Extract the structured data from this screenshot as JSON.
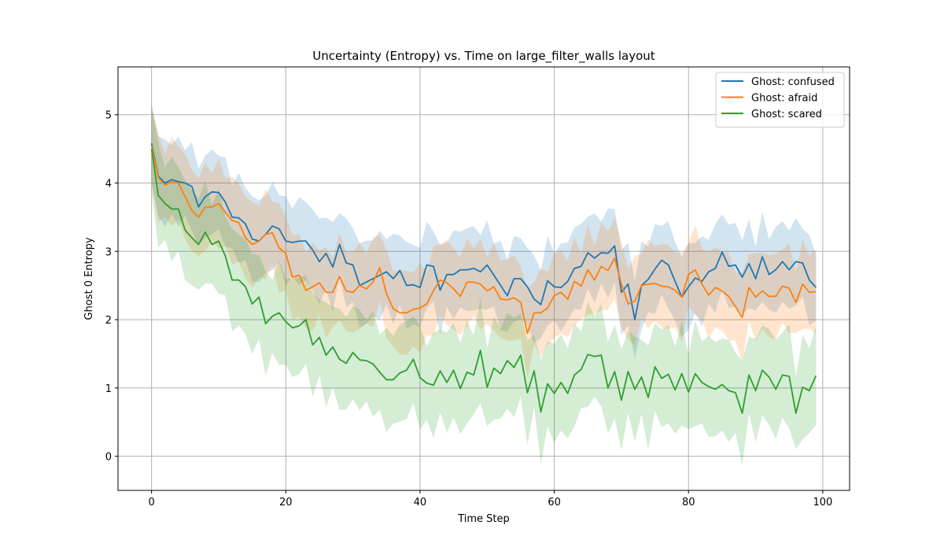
{
  "chart_data": {
    "type": "line",
    "title": "Uncertainty (Entropy) vs. Time on large_filter_walls layout",
    "xlabel": "Time Step",
    "ylabel": "Ghost 0 Entropy",
    "xlim": [
      -5,
      104
    ],
    "ylim": [
      -0.5,
      5.7
    ],
    "xticks": [
      0,
      20,
      40,
      60,
      80,
      100
    ],
    "yticks": [
      0,
      1,
      2,
      3,
      4,
      5
    ],
    "grid": true,
    "legend_position": "top-right",
    "band": "shaded region around each mean line (± spread)",
    "series": [
      {
        "name": "Ghost: confused",
        "color": "#1f77b4",
        "band_halfwidth": 0.6,
        "mean": [
          4.58,
          4.1,
          4.0,
          4.05,
          4.02,
          4.0,
          3.95,
          3.65,
          3.8,
          3.87,
          3.86,
          3.72,
          3.5,
          3.49,
          3.4,
          3.18,
          3.15,
          3.25,
          3.37,
          3.33,
          3.15,
          3.13,
          3.15,
          3.15,
          3.02,
          2.85,
          2.97,
          2.77,
          3.1,
          2.83,
          2.8,
          2.5,
          2.55,
          2.6,
          2.65,
          2.7,
          2.6,
          2.72,
          2.5,
          2.51,
          2.47,
          2.8,
          2.78,
          2.43,
          2.66,
          2.66,
          2.73,
          2.73,
          2.75,
          2.7,
          2.8,
          2.65,
          2.5,
          2.35,
          2.6,
          2.6,
          2.48,
          2.3,
          2.22,
          2.57,
          2.48,
          2.47,
          2.56,
          2.75,
          2.78,
          2.98,
          2.9,
          2.98,
          2.97,
          3.08,
          2.4,
          2.52,
          2.0,
          2.5,
          2.59,
          2.74,
          2.87,
          2.8,
          2.56,
          2.33,
          2.48,
          2.61,
          2.56,
          2.7,
          2.75,
          2.99,
          2.78,
          2.8,
          2.62,
          2.82,
          2.6,
          2.92,
          2.66,
          2.73,
          2.85,
          2.73,
          2.85,
          2.83,
          2.58,
          2.47
        ]
      },
      {
        "name": "Ghost: afraid",
        "color": "#ff7f0e",
        "band_halfwidth": 0.6,
        "mean": [
          4.55,
          4.08,
          3.97,
          4.02,
          4.0,
          3.8,
          3.6,
          3.5,
          3.65,
          3.65,
          3.7,
          3.57,
          3.45,
          3.42,
          3.2,
          3.1,
          3.15,
          3.25,
          3.27,
          3.05,
          2.97,
          2.62,
          2.65,
          2.43,
          2.48,
          2.54,
          2.4,
          2.4,
          2.63,
          2.42,
          2.4,
          2.5,
          2.45,
          2.55,
          2.76,
          2.38,
          2.16,
          2.1,
          2.1,
          2.15,
          2.17,
          2.23,
          2.42,
          2.58,
          2.54,
          2.45,
          2.34,
          2.55,
          2.55,
          2.52,
          2.42,
          2.48,
          2.3,
          2.29,
          2.32,
          2.25,
          1.8,
          2.1,
          2.1,
          2.17,
          2.35,
          2.4,
          2.3,
          2.56,
          2.49,
          2.73,
          2.58,
          2.78,
          2.72,
          2.9,
          2.52,
          2.23,
          2.27,
          2.5,
          2.52,
          2.53,
          2.49,
          2.48,
          2.43,
          2.33,
          2.66,
          2.73,
          2.52,
          2.36,
          2.47,
          2.42,
          2.34,
          2.19,
          2.03,
          2.47,
          2.33,
          2.42,
          2.34,
          2.34,
          2.49,
          2.46,
          2.25,
          2.52,
          2.4,
          2.41
        ]
      },
      {
        "name": "Ghost: scared",
        "color": "#2ca02c",
        "band_halfwidth": 0.7,
        "mean": [
          4.5,
          3.82,
          3.7,
          3.62,
          3.62,
          3.31,
          3.2,
          3.1,
          3.28,
          3.1,
          3.15,
          2.93,
          2.58,
          2.58,
          2.48,
          2.23,
          2.33,
          1.94,
          2.05,
          2.1,
          1.97,
          1.88,
          1.91,
          2.0,
          1.63,
          1.74,
          1.48,
          1.6,
          1.42,
          1.36,
          1.52,
          1.41,
          1.4,
          1.35,
          1.23,
          1.12,
          1.12,
          1.22,
          1.26,
          1.42,
          1.15,
          1.07,
          1.04,
          1.25,
          1.08,
          1.26,
          0.99,
          1.23,
          1.19,
          1.55,
          1.01,
          1.29,
          1.21,
          1.4,
          1.3,
          1.48,
          0.93,
          1.25,
          0.65,
          1.06,
          0.92,
          1.08,
          0.92,
          1.19,
          1.27,
          1.49,
          1.46,
          1.48,
          1.0,
          1.24,
          0.82,
          1.24,
          0.98,
          1.16,
          0.86,
          1.31,
          1.14,
          1.2,
          0.97,
          1.21,
          0.94,
          1.21,
          1.08,
          1.02,
          0.98,
          1.05,
          0.96,
          0.93,
          0.63,
          1.19,
          0.96,
          1.26,
          1.16,
          0.98,
          1.19,
          1.17,
          0.63,
          1.01,
          0.96,
          1.18
        ]
      }
    ]
  }
}
